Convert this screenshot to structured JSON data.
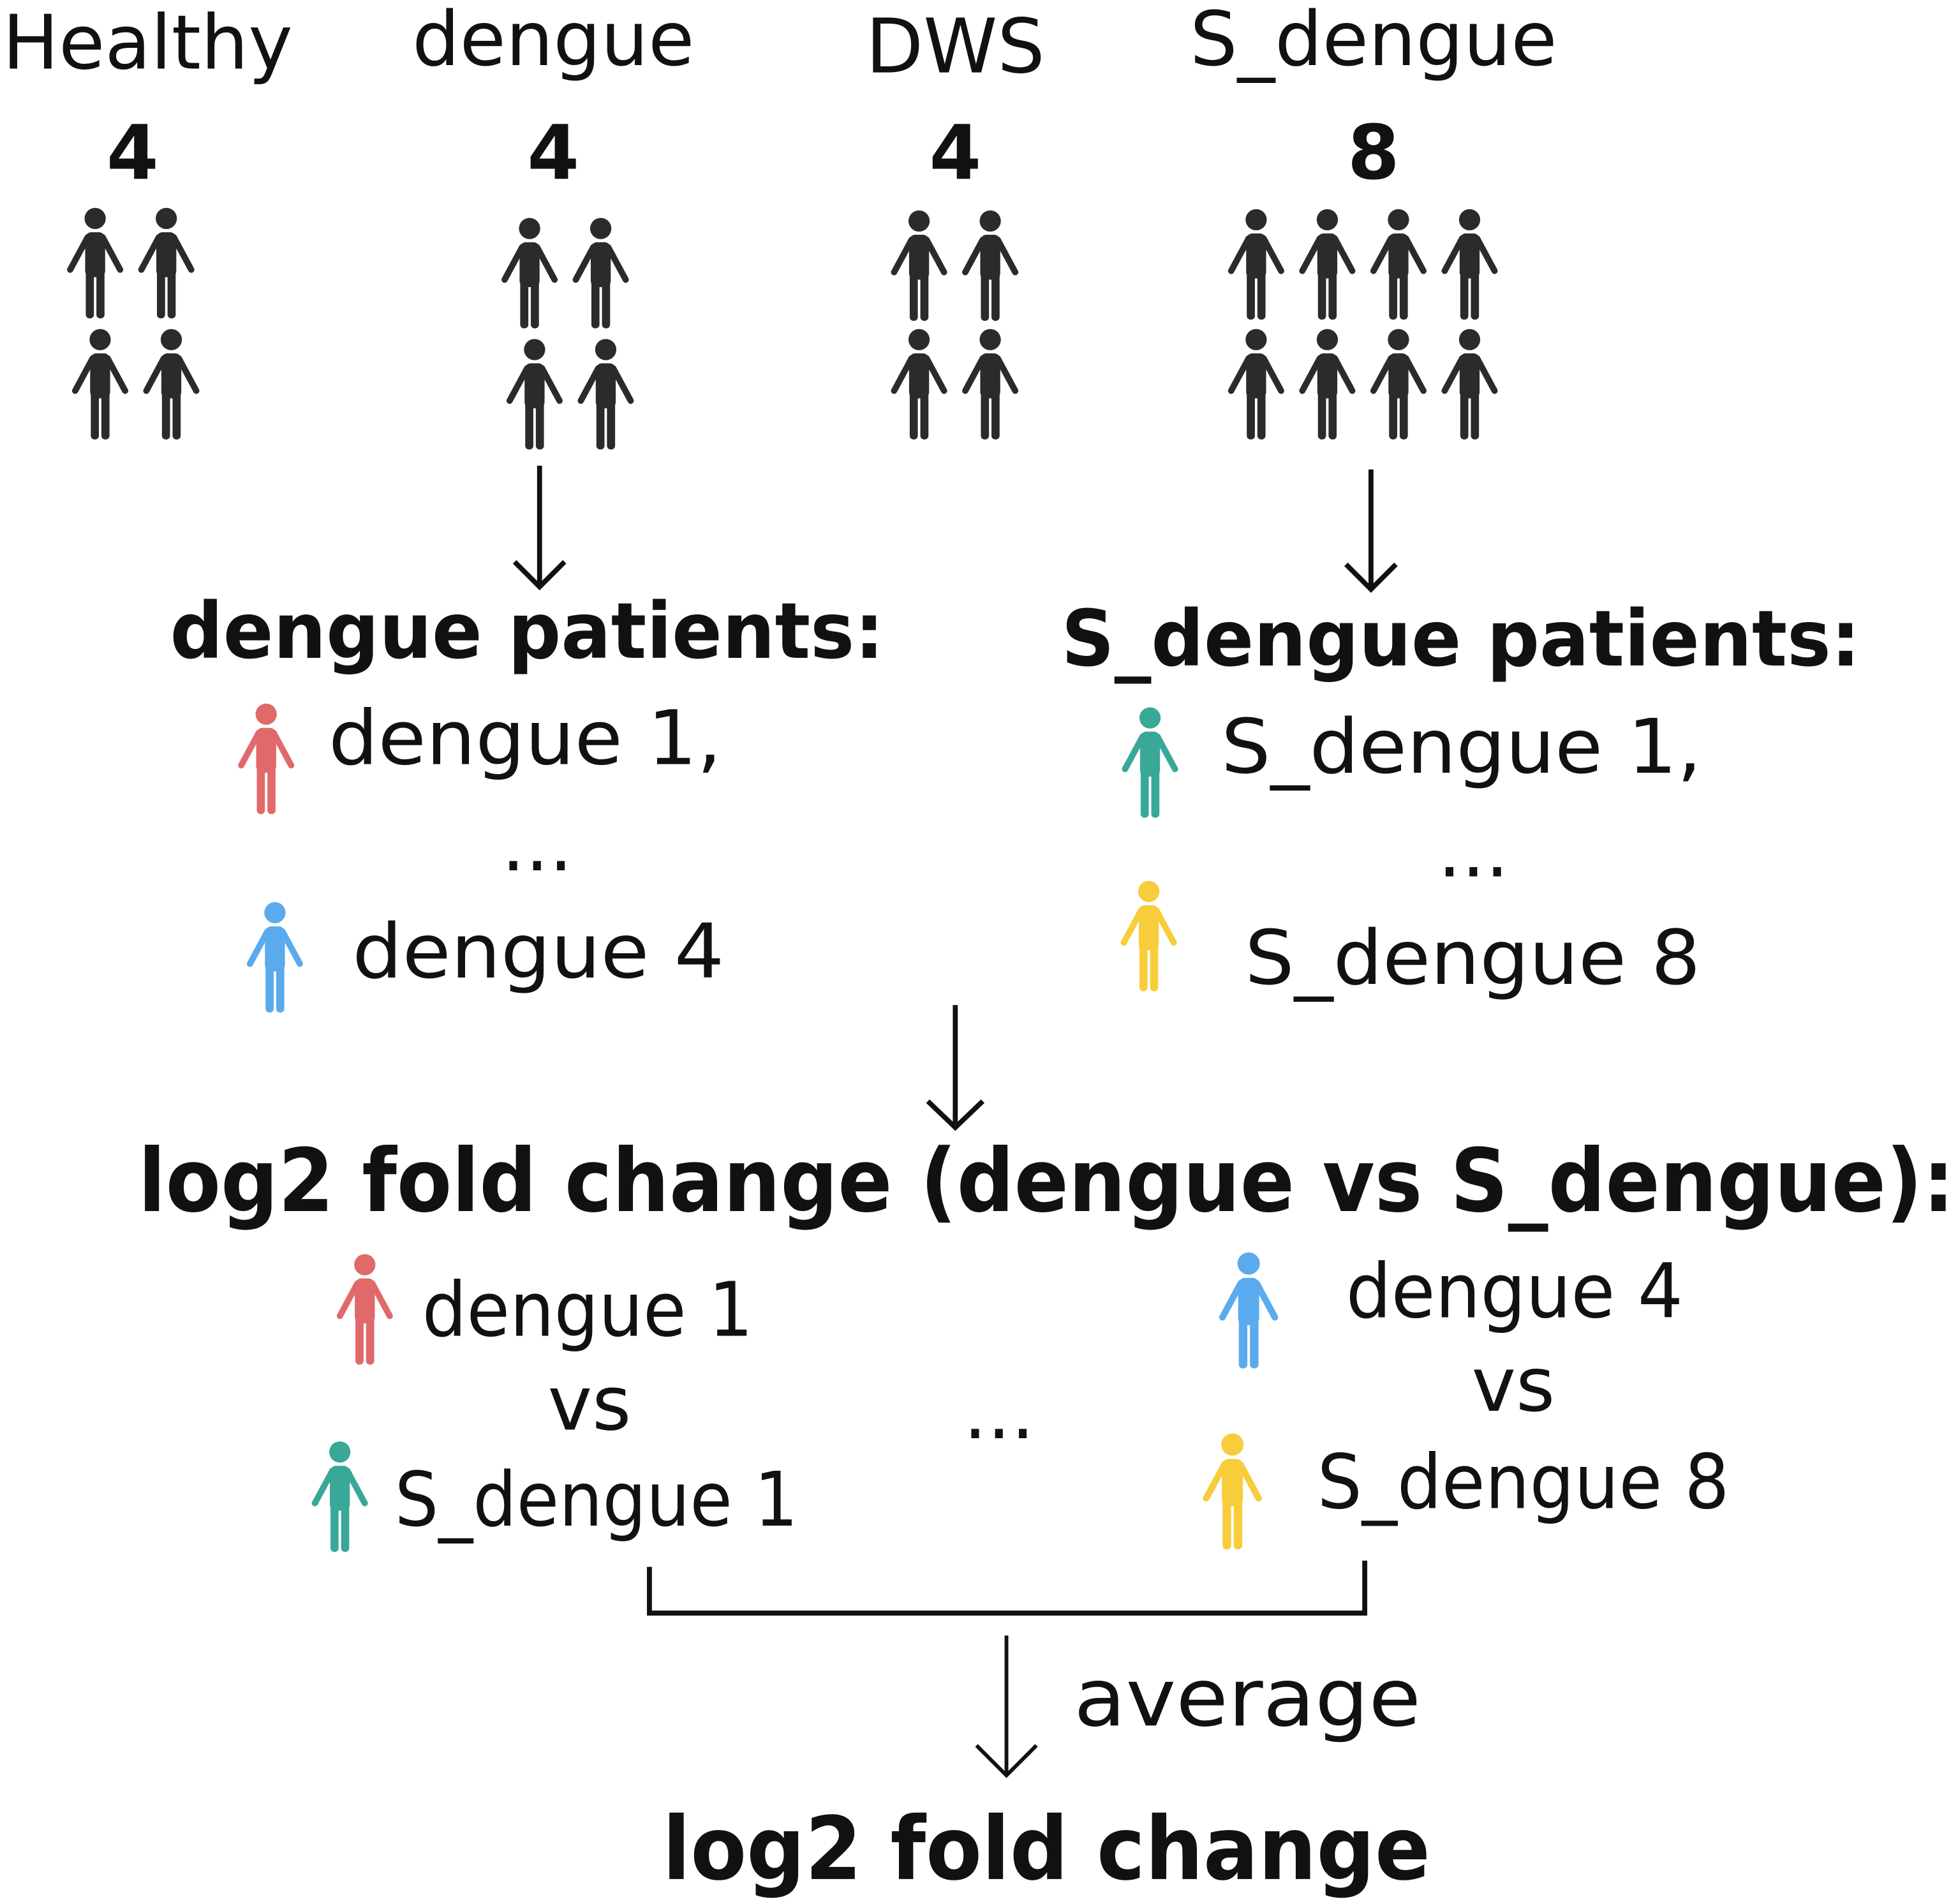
{
  "groups": [
    {
      "label": "Healthy",
      "count": 4
    },
    {
      "label": "dengue",
      "count": 4
    },
    {
      "label": "DWS",
      "count": 4
    },
    {
      "label": "S_dengue",
      "count": 8
    }
  ],
  "dengue_patients": {
    "title": "dengue patients:",
    "first": "dengue 1,",
    "ellipsis": "...",
    "last": "dengue 4"
  },
  "s_dengue_patients": {
    "title": "S_dengue patients:",
    "first": "S_dengue 1,",
    "ellipsis": "...",
    "last": "S_dengue 8"
  },
  "comparison": {
    "title": "log2 fold change (dengue vs S_dengue):",
    "pairs": [
      {
        "a": "dengue 1",
        "vs": "vs",
        "b": "S_dengue 1"
      },
      {
        "a": "dengue 4",
        "vs": "vs",
        "b": "S_dengue 8"
      }
    ],
    "ellipsis": "..."
  },
  "average_label": "average",
  "result": "log2 fold change"
}
